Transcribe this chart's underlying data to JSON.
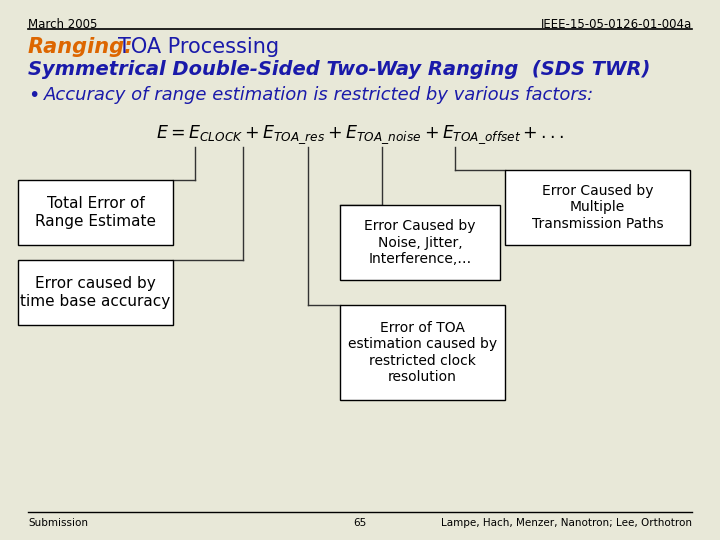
{
  "bg_color": "#e8e8d8",
  "header_left": "March 2005",
  "header_right": "IEEE-15-05-0126-01-004a",
  "title_bold": "Ranging:",
  "title_blue_italic": "TOA Processing",
  "subtitle": "Symmetrical Double-Sided Two-Way Ranging  (SDS TWR)",
  "bullet": "Accuracy of range estimation is restricted by various factors:",
  "box1_text": "Total Error of\nRange Estimate",
  "box2_text": "Error caused by\ntime base accuracy",
  "box3_text": "Error Caused by\nNoise, Jitter,\nInterference,…",
  "box4_text": "Error Caused by\nMultiple\nTransmission Paths",
  "box5_text": "Error of TOA\nestimation caused by\nrestricted clock\nresolution",
  "footer_left": "Submission",
  "footer_center": "65",
  "footer_right": "Lampe, Hach, Menzer, Nanotron; Lee, Orthotron",
  "orange_color": "#dd6600",
  "blue_color": "#1a1aaa",
  "text_color": "#000000",
  "line_color": "#333333",
  "eq_color": "#000000"
}
